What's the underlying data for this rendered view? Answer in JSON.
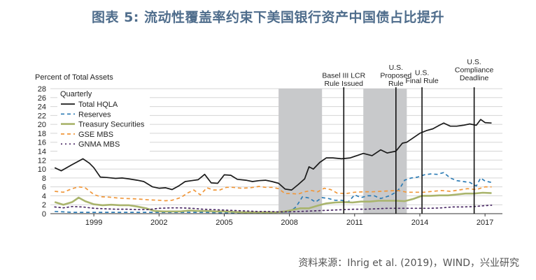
{
  "figure": {
    "title": "图表 5:  流动性覆盖率约束下美国银行资产中国债占比提升",
    "source": "资料来源：Ihrig et al. (2019)，WIND，兴业研究"
  },
  "colors": {
    "title": "#4f6d8c",
    "total_hqla": "#1a1a1a",
    "reserves": "#2d7cb5",
    "treasury": "#a9b46c",
    "gse_mbs": "#f0973a",
    "gnma_mbs": "#4b2a66",
    "shading": "#c8c9cb",
    "grid": "#d5d5d5"
  },
  "chart_data": {
    "type": "line",
    "ylabel": "Percent of Total Assets",
    "legend_title": "Quarterly",
    "legend_position": "top-left",
    "grid": true,
    "xlim": [
      1997.0,
      2017.8
    ],
    "ylim": [
      0,
      28
    ],
    "yticks": [
      "0",
      "2",
      "4",
      "6",
      "8",
      "10",
      "12",
      "14",
      "16",
      "18",
      "20",
      "22",
      "24",
      "26",
      "28"
    ],
    "xticks": [
      {
        "label": "1999",
        "value": 1999
      },
      {
        "label": "2002",
        "value": 2002
      },
      {
        "label": "2005",
        "value": 2005
      },
      {
        "label": "2008",
        "value": 2008
      },
      {
        "label": "2011",
        "value": 2011
      },
      {
        "label": "2014",
        "value": 2014
      },
      {
        "label": "2017",
        "value": 2017
      }
    ],
    "shaded_periods": [
      [
        2007.5,
        2009.5
      ],
      [
        2011.4,
        2013.4
      ]
    ],
    "annotations": [
      {
        "id": "basel",
        "lines": [
          "Basel III LCR",
          "Rule Issued"
        ],
        "x": 2010.5
      },
      {
        "id": "proposed",
        "lines": [
          "U.S.",
          "Proposed",
          "Rule"
        ],
        "x": 2012.9
      },
      {
        "id": "final",
        "lines": [
          "U.S.",
          "Final Rule"
        ],
        "x": 2014.1
      },
      {
        "id": "deadline",
        "lines": [
          "U.S.",
          "Compliance",
          "Deadline"
        ],
        "x": 2016.5
      }
    ],
    "series": [
      {
        "name": "Total HQLA",
        "key": "total_hqla",
        "style": "solid",
        "x": [
          1997.2,
          1997.5,
          1998.0,
          1998.5,
          1998.8,
          1999.0,
          1999.3,
          1999.6,
          2000.0,
          2000.3,
          2000.6,
          2001.0,
          2001.3,
          2001.7,
          2002.0,
          2002.3,
          2002.6,
          2002.9,
          2003.2,
          2003.5,
          2003.8,
          2004.1,
          2004.4,
          2004.7,
          2005.0,
          2005.3,
          2005.6,
          2006.0,
          2006.3,
          2006.6,
          2006.9,
          2007.2,
          2007.5,
          2007.8,
          2008.1,
          2008.4,
          2008.7,
          2008.9,
          2009.1,
          2009.4,
          2009.7,
          2010.0,
          2010.4,
          2010.8,
          2011.1,
          2011.4,
          2011.8,
          2012.2,
          2012.5,
          2012.9,
          2013.2,
          2013.4,
          2013.7,
          2014.0,
          2014.3,
          2014.6,
          2014.9,
          2015.1,
          2015.4,
          2015.7,
          2016.0,
          2016.3,
          2016.6,
          2016.8,
          2017.0,
          2017.3
        ],
        "values": [
          10.3,
          9.6,
          11.0,
          12.3,
          11.3,
          10.3,
          8.2,
          8.1,
          7.9,
          8.0,
          7.8,
          7.5,
          7.2,
          6.0,
          5.7,
          5.8,
          5.4,
          6.2,
          7.2,
          7.4,
          7.6,
          8.8,
          6.9,
          6.8,
          8.7,
          8.6,
          7.7,
          7.5,
          7.2,
          7.4,
          7.5,
          7.2,
          6.8,
          5.5,
          5.3,
          6.5,
          7.8,
          10.5,
          10.0,
          11.5,
          12.5,
          12.5,
          12.3,
          12.5,
          13.0,
          13.5,
          13.0,
          14.3,
          13.6,
          14.0,
          15.8,
          16.0,
          17.0,
          18.0,
          18.6,
          19.0,
          19.8,
          20.3,
          19.6,
          19.6,
          19.8,
          20.1,
          19.8,
          21.1,
          20.4,
          20.3
        ]
      },
      {
        "name": "Reserves",
        "key": "reserves",
        "style": "dashed",
        "x": [
          1997.2,
          1998.0,
          1999.0,
          2000.0,
          2001.0,
          2002.0,
          2003.0,
          2004.0,
          2005.0,
          2006.0,
          2007.0,
          2007.6,
          2008.0,
          2008.3,
          2008.6,
          2008.9,
          2009.2,
          2009.5,
          2009.8,
          2010.1,
          2010.4,
          2010.7,
          2011.0,
          2011.3,
          2011.6,
          2011.9,
          2012.2,
          2012.6,
          2012.9,
          2013.1,
          2013.3,
          2013.6,
          2013.9,
          2014.2,
          2014.5,
          2014.8,
          2015.1,
          2015.4,
          2015.7,
          2016.0,
          2016.3,
          2016.6,
          2016.8,
          2017.0,
          2017.3
        ],
        "values": [
          0.5,
          0.3,
          0.3,
          0.3,
          0.3,
          0.3,
          0.3,
          0.3,
          0.2,
          0.2,
          0.2,
          0.3,
          0.4,
          1.5,
          3.8,
          3.5,
          2.6,
          3.6,
          3.4,
          3.0,
          3.0,
          2.6,
          4.2,
          3.6,
          4.0,
          4.0,
          3.4,
          4.0,
          4.8,
          5.8,
          7.5,
          8.0,
          8.2,
          8.7,
          8.9,
          8.8,
          9.2,
          8.0,
          7.4,
          7.2,
          7.0,
          6.2,
          8.0,
          7.3,
          7.0
        ]
      },
      {
        "name": "Treasury Securities",
        "key": "treasury",
        "style": "solid",
        "x": [
          1997.2,
          1997.6,
          1998.0,
          1998.3,
          1998.6,
          1999.0,
          1999.4,
          1999.8,
          2000.2,
          2000.6,
          2001.0,
          2001.4,
          2001.8,
          2002.2,
          2002.6,
          2003.0,
          2003.4,
          2003.8,
          2004.2,
          2004.6,
          2005.0,
          2005.4,
          2005.8,
          2006.2,
          2006.6,
          2007.0,
          2007.4,
          2007.8,
          2008.1,
          2008.5,
          2008.9,
          2009.3,
          2009.7,
          2010.1,
          2010.5,
          2010.9,
          2011.3,
          2011.7,
          2012.1,
          2012.5,
          2012.9,
          2013.3,
          2013.7,
          2014.1,
          2014.5,
          2014.9,
          2015.3,
          2015.7,
          2016.1,
          2016.5,
          2016.9,
          2017.3
        ],
        "values": [
          2.6,
          2.0,
          2.6,
          3.6,
          2.8,
          2.1,
          1.9,
          2.0,
          1.9,
          1.9,
          1.6,
          1.2,
          0.6,
          0.5,
          0.5,
          0.5,
          0.7,
          0.6,
          0.6,
          0.5,
          0.5,
          0.4,
          0.3,
          0.3,
          0.3,
          0.3,
          0.3,
          0.5,
          0.8,
          1.2,
          1.2,
          1.8,
          2.3,
          2.5,
          2.6,
          2.5,
          2.7,
          2.7,
          2.9,
          2.9,
          2.9,
          2.8,
          3.3,
          4.0,
          4.0,
          4.1,
          4.1,
          4.3,
          4.5,
          4.5,
          4.7,
          4.6
        ]
      },
      {
        "name": "GSE MBS",
        "key": "gse_mbs",
        "style": "dashed",
        "x": [
          1997.2,
          1997.6,
          1998.0,
          1998.3,
          1998.6,
          1999.0,
          1999.3,
          1999.7,
          2000.1,
          2000.5,
          2001.0,
          2001.5,
          2002.0,
          2002.3,
          2002.6,
          2003.0,
          2003.3,
          2003.6,
          2003.9,
          2004.2,
          2004.5,
          2004.8,
          2005.1,
          2005.4,
          2005.8,
          2006.2,
          2006.6,
          2006.9,
          2007.2,
          2007.5,
          2007.8,
          2008.1,
          2008.4,
          2008.7,
          2009.0,
          2009.3,
          2009.6,
          2009.9,
          2010.2,
          2010.6,
          2011.0,
          2011.4,
          2011.8,
          2012.2,
          2012.6,
          2013.0,
          2013.4,
          2013.8,
          2014.2,
          2014.6,
          2015.0,
          2015.4,
          2015.8,
          2016.2,
          2016.6,
          2017.0,
          2017.3
        ],
        "values": [
          5.0,
          4.8,
          5.6,
          6.0,
          5.8,
          4.3,
          3.8,
          3.7,
          3.5,
          3.4,
          3.3,
          3.1,
          3.0,
          2.9,
          3.0,
          3.6,
          4.6,
          5.3,
          4.2,
          5.8,
          5.3,
          5.3,
          5.9,
          5.9,
          5.7,
          5.8,
          6.1,
          5.9,
          5.9,
          5.6,
          4.5,
          4.5,
          4.4,
          4.9,
          5.2,
          4.9,
          5.7,
          5.4,
          4.6,
          4.5,
          4.8,
          4.9,
          4.9,
          5.0,
          5.1,
          5.2,
          4.8,
          4.8,
          4.8,
          5.0,
          5.2,
          5.0,
          5.3,
          5.6,
          5.4,
          6.0,
          6.0
        ]
      },
      {
        "name": "GNMA MBS",
        "key": "gnma_mbs",
        "style": "dotted",
        "x": [
          1997.2,
          1997.6,
          1998.0,
          1998.5,
          1999.0,
          1999.5,
          2000.0,
          2000.5,
          2001.0,
          2001.5,
          2002.0,
          2002.5,
          2003.0,
          2003.5,
          2004.0,
          2004.5,
          2005.0,
          2005.5,
          2006.0,
          2006.5,
          2007.0,
          2007.5,
          2008.0,
          2008.5,
          2009.0,
          2009.5,
          2010.0,
          2010.5,
          2011.0,
          2011.5,
          2012.0,
          2012.5,
          2013.0,
          2013.5,
          2014.0,
          2014.5,
          2015.0,
          2015.5,
          2016.0,
          2016.5,
          2017.0,
          2017.3
        ],
        "values": [
          1.5,
          1.3,
          1.6,
          1.5,
          1.2,
          1.1,
          1.0,
          1.0,
          0.9,
          0.9,
          1.2,
          1.3,
          1.3,
          1.2,
          1.0,
          0.9,
          0.8,
          0.7,
          0.6,
          0.5,
          0.5,
          0.4,
          0.4,
          0.5,
          0.6,
          0.7,
          0.8,
          0.9,
          1.0,
          1.0,
          1.1,
          1.2,
          1.2,
          1.2,
          1.2,
          1.2,
          1.3,
          1.5,
          1.5,
          1.6,
          1.8,
          1.9
        ]
      }
    ]
  }
}
